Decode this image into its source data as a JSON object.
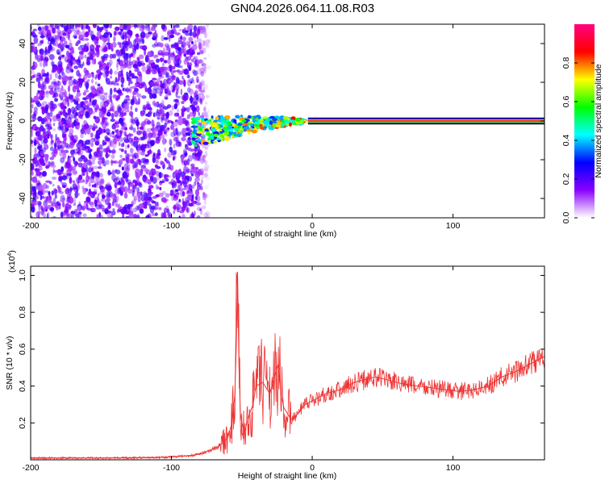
{
  "page": {
    "title": "GN04.2026.064.11.08.R03"
  },
  "chart_data": [
    {
      "type": "heatmap",
      "title": "",
      "xlabel": "Height of straight line (km)",
      "ylabel": "Frequency (Hz)",
      "xlim": [
        -200,
        165
      ],
      "ylim": [
        -50,
        50
      ],
      "xticks": [
        -200,
        -100,
        0,
        100
      ],
      "yticks": [
        -40,
        -20,
        0,
        20,
        40
      ],
      "colorbar": {
        "label": "Normalized spectral amplitude",
        "range": [
          0,
          1
        ],
        "ticks": [
          "0.0",
          "0.2",
          "0.4",
          "0.6",
          "0.8"
        ],
        "tick_values": [
          0,
          0.2,
          0.4,
          0.6,
          0.8
        ],
        "colormap": [
          "#ffffff",
          "#8a00ff",
          "#0000ff",
          "#00ffff",
          "#00ff00",
          "#ffff00",
          "#ff0000",
          "#ff0080"
        ]
      },
      "regions": {
        "noise_x_range": [
          -200,
          -82
        ],
        "transition_x_range": [
          -85,
          -5
        ],
        "signal_x_range": [
          0,
          165
        ],
        "signal_frequency": 0
      }
    },
    {
      "type": "line",
      "title": "",
      "xlabel": "Height of straight line (km)",
      "ylabel": "SNR (10 * v/v)",
      "y_multiplier_label": "(x10",
      "y_multiplier_exp": "4",
      "y_multiplier_close": ")",
      "xlim": [
        -200,
        165
      ],
      "ylim": [
        0,
        1.05
      ],
      "xticks": [
        -200,
        -100,
        0,
        100
      ],
      "yticks": [
        "0.2",
        "0.4",
        "0.6",
        "0.8",
        "1.0"
      ],
      "ytick_values": [
        0.2,
        0.4,
        0.6,
        0.8,
        1.0
      ],
      "series": [
        {
          "color": "#ee3333",
          "x": [
            -200,
            -150,
            -110,
            -90,
            -80,
            -70,
            -65,
            -60,
            -57,
            -55,
            -54,
            -53,
            -52,
            -51,
            -50,
            -48,
            -45,
            -42,
            -40,
            -35,
            -32,
            -30,
            -27,
            -24,
            -22,
            -20,
            -15,
            -10,
            -5,
            0,
            10,
            20,
            30,
            40,
            45,
            55,
            65,
            75,
            85,
            95,
            105,
            115,
            125,
            135,
            145,
            155,
            165
          ],
          "values": [
            0.01,
            0.01,
            0.012,
            0.02,
            0.03,
            0.06,
            0.08,
            0.12,
            0.2,
            0.35,
            0.6,
            1.02,
            0.5,
            0.25,
            0.2,
            0.15,
            0.24,
            0.3,
            0.4,
            0.42,
            0.38,
            0.36,
            0.45,
            0.52,
            0.35,
            0.28,
            0.22,
            0.25,
            0.3,
            0.32,
            0.36,
            0.38,
            0.42,
            0.44,
            0.45,
            0.43,
            0.41,
            0.4,
            0.39,
            0.38,
            0.37,
            0.38,
            0.4,
            0.45,
            0.48,
            0.52,
            0.56
          ]
        }
      ]
    }
  ]
}
